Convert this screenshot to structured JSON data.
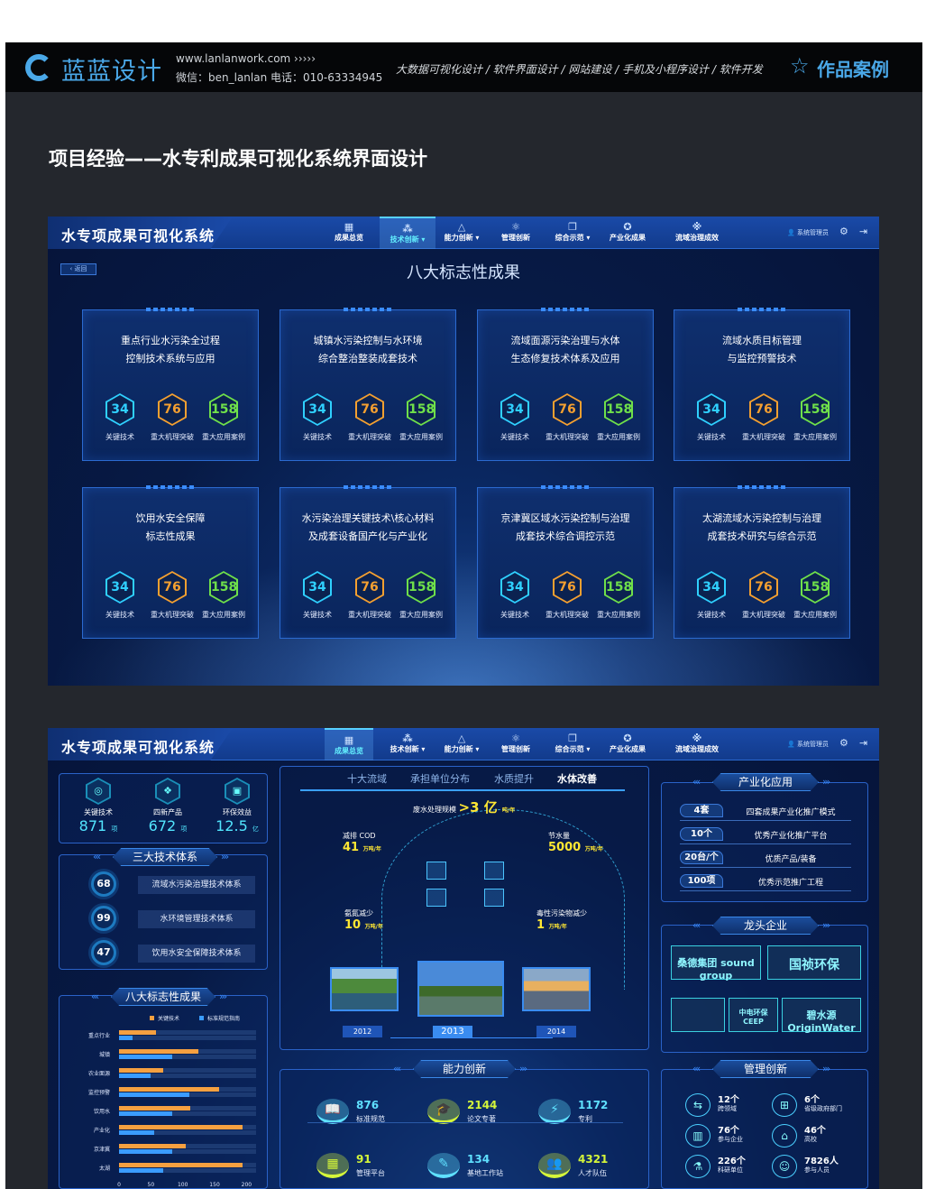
{
  "header": {
    "brand": "蓝蓝设计",
    "site": "www.lanlanwork.com  ›››››",
    "contact": "微信：ben_lanlan   电话：010-63334945",
    "services": "大数据可视化设计 / 软件界面设计 / 网站建设 / 手机及小程序设计 / 软件开发",
    "works": "作品案例"
  },
  "page_heading": "项目经验——水专利成果可视化系统界面设计",
  "system": {
    "title": "水专项成果可视化系统",
    "user": "系统管理员",
    "nav": [
      {
        "label": "成果总览",
        "icon": "▦",
        "dropdown": false
      },
      {
        "label": "技术创新",
        "icon": "⁂",
        "dropdown": true
      },
      {
        "label": "能力创新",
        "icon": "△",
        "dropdown": true
      },
      {
        "label": "管理创新",
        "icon": "⚛",
        "dropdown": false
      },
      {
        "label": "综合示范",
        "icon": "❐",
        "dropdown": true
      },
      {
        "label": "产业化成果",
        "icon": "✪",
        "dropdown": false
      },
      {
        "label": "流域治理成效",
        "icon": "※",
        "dropdown": false
      }
    ]
  },
  "screen1": {
    "active_nav": 1,
    "back": "‹ 返回",
    "title": "八大标志性成果",
    "badge_labels": [
      "关键技术",
      "重大机理突破",
      "重大应用案例"
    ],
    "badge_colors": [
      "#2fd0ff",
      "#f5a030",
      "#6fe04a"
    ],
    "cards": [
      {
        "title": [
          "重点行业水污染全过程",
          "控制技术系统与应用"
        ],
        "values": [
          34,
          76,
          158
        ]
      },
      {
        "title": [
          "城镇水污染控制与水环境",
          "综合整治整装成套技术"
        ],
        "values": [
          34,
          76,
          158
        ]
      },
      {
        "title": [
          "流域面源污染治理与水体",
          "生态修复技术体系及应用"
        ],
        "values": [
          34,
          76,
          158
        ]
      },
      {
        "title": [
          "流域水质目标管理",
          "与监控预警技术"
        ],
        "values": [
          34,
          76,
          158
        ]
      },
      {
        "title": [
          "饮用水安全保障",
          "标志性成果"
        ],
        "values": [
          34,
          76,
          158
        ]
      },
      {
        "title": [
          "水污染治理关键技术\\核心材料",
          "及成套设备国产化与产业化"
        ],
        "values": [
          34,
          76,
          158
        ]
      },
      {
        "title": [
          "京津冀区域水污染控制与治理",
          "成套技术综合调控示范"
        ],
        "values": [
          34,
          76,
          158
        ]
      },
      {
        "title": [
          "太湖流域水污染控制与治理",
          "成套技术研究与综合示范"
        ],
        "values": [
          34,
          76,
          158
        ]
      }
    ]
  },
  "screen2": {
    "active_nav": 0,
    "stats": [
      {
        "icon": "◎",
        "label": "关键技术",
        "value": "871",
        "unit": "项"
      },
      {
        "icon": "❖",
        "label": "四新产品",
        "value": "672",
        "unit": "项"
      },
      {
        "icon": "▣",
        "label": "环保效益",
        "value": "12.5",
        "unit": "亿"
      }
    ],
    "tech_title": "三大技术体系",
    "tech": [
      {
        "value": "68",
        "label": "流域水污染治理技术体系"
      },
      {
        "value": "99",
        "label": "水环境管理技术体系"
      },
      {
        "value": "47",
        "label": "饮用水安全保障技术体系"
      }
    ],
    "tabs": [
      "十大流域",
      "承担单位分布",
      "水质提升",
      "水体改善"
    ],
    "active_tab": 3,
    "center": {
      "top": {
        "label": "废水处理规模",
        "value": ">3 亿",
        "unit": "吨/年"
      },
      "metrics": [
        {
          "label": "减排 COD",
          "value": "41",
          "unit": "万吨/年"
        },
        {
          "label": "节水量",
          "value": "5000",
          "unit": "万吨/年"
        },
        {
          "label": "氨氮减少",
          "value": "10",
          "unit": "万吨/年"
        },
        {
          "label": "毒性污染物减少",
          "value": "1",
          "unit": "万吨/年"
        }
      ],
      "years": [
        "2012",
        "2013",
        "2014"
      ],
      "active_year": 1
    },
    "ability_title": "能力创新",
    "ability": [
      {
        "icon": "📖",
        "value": "876",
        "label": "标准规范",
        "color": "#5fe0ff"
      },
      {
        "icon": "🎓",
        "value": "2144",
        "label": "论文专著",
        "color": "#d4f53a"
      },
      {
        "icon": "⚡",
        "value": "1172",
        "label": "专利",
        "color": "#5fe0ff"
      },
      {
        "icon": "▦",
        "value": "91",
        "label": "管理平台",
        "color": "#d4f53a"
      },
      {
        "icon": "✎",
        "value": "134",
        "label": "基地工作站",
        "color": "#5fe0ff"
      },
      {
        "icon": "👥",
        "value": "4321",
        "label": "人才队伍",
        "color": "#d4f53a"
      }
    ],
    "industry_title": "产业化应用",
    "industry": [
      {
        "value": "4套",
        "label": "四套成果产业化推广模式"
      },
      {
        "value": "10个",
        "label": "优秀产业化推广平台"
      },
      {
        "value": "20台/个",
        "label": "优质产品/装备"
      },
      {
        "value": "100项",
        "label": "优秀示范推广工程"
      }
    ],
    "leaders_title": "龙头企业",
    "leaders": [
      "桑德集团 sound group",
      "国祯环保",
      "",
      "中电环保 CEEP",
      "碧水源 OriginWater"
    ],
    "mgmt_title": "管理创新",
    "mgmt": [
      {
        "icon": "⇆",
        "value": "12个",
        "label": "跨领域"
      },
      {
        "icon": "⊞",
        "value": "6个",
        "label": "省级政府部门"
      },
      {
        "icon": "▥",
        "value": "76个",
        "label": "参与企业"
      },
      {
        "icon": "⌂",
        "value": "46个",
        "label": "高校"
      },
      {
        "icon": "⚗",
        "value": "226个",
        "label": "科研单位"
      },
      {
        "icon": "☺",
        "value": "7826人",
        "label": "参与人员"
      }
    ],
    "chart_data": {
      "type": "bar",
      "title": "八大标志性成果",
      "orientation": "horizontal",
      "categories": [
        "重点行业",
        "城镇",
        "农业面源",
        "监控预警",
        "饮用水",
        "产业化",
        "京津冀",
        "太湖"
      ],
      "series": [
        {
          "name": "关键技术",
          "color": "#f5a040",
          "values": [
            58,
            125,
            70,
            157,
            112,
            194,
            105,
            194
          ]
        },
        {
          "name": "标准规范指南",
          "color": "#3a9cff",
          "values": [
            21,
            84,
            49,
            110,
            83,
            55,
            83,
            70
          ]
        }
      ],
      "xlim": [
        0,
        215
      ],
      "xticks": [
        0,
        50,
        100,
        150,
        200
      ],
      "legend": "top-right"
    }
  }
}
